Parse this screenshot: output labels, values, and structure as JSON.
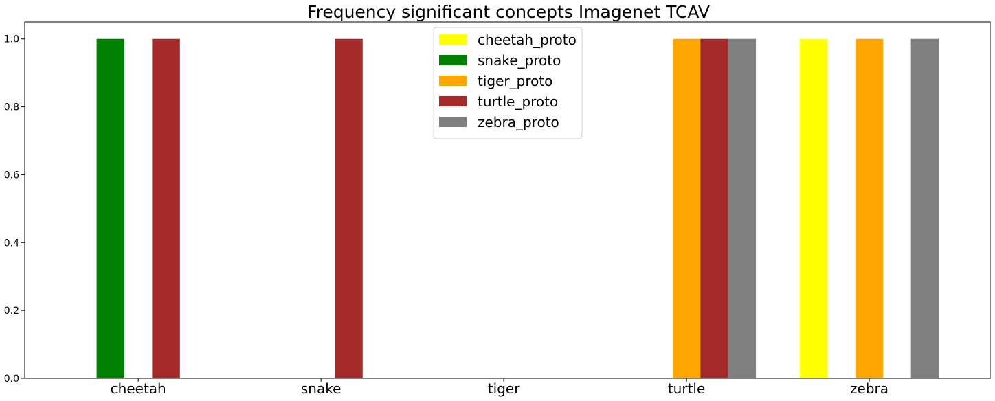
{
  "chart_data": {
    "type": "bar",
    "title": "Frequency significant concepts Imagenet TCAV",
    "xlabel": "",
    "ylabel": "",
    "ylim": [
      0,
      1.05
    ],
    "yticks": [
      "0.0",
      "0.2",
      "0.4",
      "0.6",
      "0.8",
      "1.0"
    ],
    "categories": [
      "cheetah",
      "snake",
      "tiger",
      "turtle",
      "zebra"
    ],
    "legend_position": "top-center",
    "grid": false,
    "series": [
      {
        "name": "cheetah_proto",
        "color": "#ffff00",
        "values": [
          0,
          0,
          0,
          0,
          1
        ]
      },
      {
        "name": "snake_proto",
        "color": "#008000",
        "values": [
          1,
          0,
          0,
          0,
          0
        ]
      },
      {
        "name": "tiger_proto",
        "color": "#ffa500",
        "values": [
          0,
          0,
          0,
          1,
          1
        ]
      },
      {
        "name": "turtle_proto",
        "color": "#a52a2a",
        "values": [
          1,
          1,
          0,
          1,
          0
        ]
      },
      {
        "name": "zebra_proto",
        "color": "#808080",
        "values": [
          0,
          0,
          0,
          1,
          1
        ]
      }
    ]
  }
}
